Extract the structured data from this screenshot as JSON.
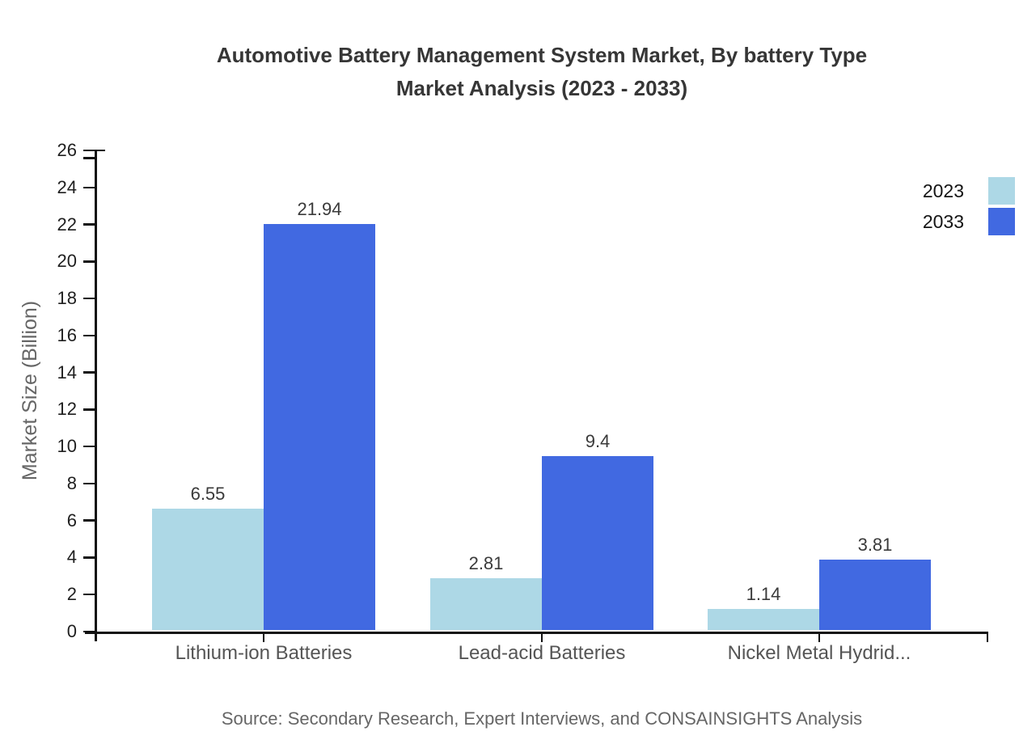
{
  "page": {
    "background": "#ffffff"
  },
  "title": {
    "line1": "Automotive Battery Management System Market, By battery Type",
    "line2": "Market Analysis (2023 - 2033)"
  },
  "source_note": "Source: Secondary Research, Expert Interviews, and CONSAINSIGHTS Analysis",
  "colors": {
    "axis": "#111111",
    "ytick_label": "#1f1f1f",
    "category_label": "#555555",
    "value_label": "#3a3a3a",
    "title": "#363636",
    "muted_text": "#666666",
    "series_2023": "#ADD8E6",
    "series_2033": "#4169E1"
  },
  "chart_data": {
    "type": "bar",
    "title": "Automotive Battery Management System Market, By battery Type Market Analysis (2023 - 2033)",
    "categories": [
      "Lithium-ion Batteries",
      "Lead-acid Batteries",
      "Nickel Metal Hydrid..."
    ],
    "series": [
      {
        "name": "2023",
        "color": "#ADD8E6",
        "values": [
          6.55,
          2.81,
          1.14
        ]
      },
      {
        "name": "2033",
        "color": "#4169E1",
        "values": [
          21.94,
          9.4,
          3.81
        ]
      }
    ],
    "value_labels": [
      [
        "6.55",
        "2.81",
        "1.14"
      ],
      [
        "21.94",
        "9.4",
        "3.81"
      ]
    ],
    "xlabel": "",
    "ylabel": "Market Size (Billion)",
    "ylim": [
      0,
      26
    ],
    "ytick_step": 2,
    "grid": false,
    "legend_position": "top-right",
    "legend_entries": [
      "2023",
      "2033"
    ]
  }
}
